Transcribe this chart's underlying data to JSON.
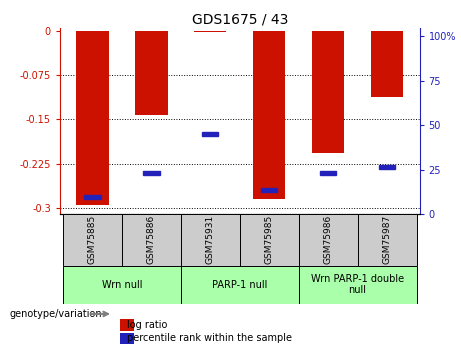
{
  "title": "GDS1675 / 43",
  "samples": [
    "GSM75885",
    "GSM75886",
    "GSM75931",
    "GSM75985",
    "GSM75986",
    "GSM75987"
  ],
  "log_ratios": [
    -0.295,
    -0.143,
    -0.002,
    -0.284,
    -0.207,
    -0.112
  ],
  "percentile_ranks": [
    9,
    22,
    43,
    13,
    22,
    25
  ],
  "ylim_left": [
    -0.31,
    0.005
  ],
  "ylim_right": [
    0,
    105
  ],
  "yticks_left": [
    0,
    -0.075,
    -0.15,
    -0.225,
    -0.3
  ],
  "yticks_right": [
    0,
    25,
    50,
    75,
    100
  ],
  "ytick_labels_left": [
    "0",
    "-0.075",
    "-0.15",
    "-0.225",
    "-0.3"
  ],
  "ytick_labels_right": [
    "0",
    "25",
    "50",
    "75",
    "100%"
  ],
  "bar_color_red": "#cc1100",
  "bar_color_blue": "#2222bb",
  "groups": [
    {
      "label": "Wrn null",
      "start": 0,
      "end": 2
    },
    {
      "label": "PARP-1 null",
      "start": 2,
      "end": 4
    },
    {
      "label": "Wrn PARP-1 double\nnull",
      "start": 4,
      "end": 6
    }
  ],
  "group_bg_color": "#aaffaa",
  "sample_bg_color": "#cccccc",
  "legend_label_red": "log ratio",
  "legend_label_blue": "percentile rank within the sample",
  "genotype_label": "genotype/variation",
  "bar_width": 0.55
}
